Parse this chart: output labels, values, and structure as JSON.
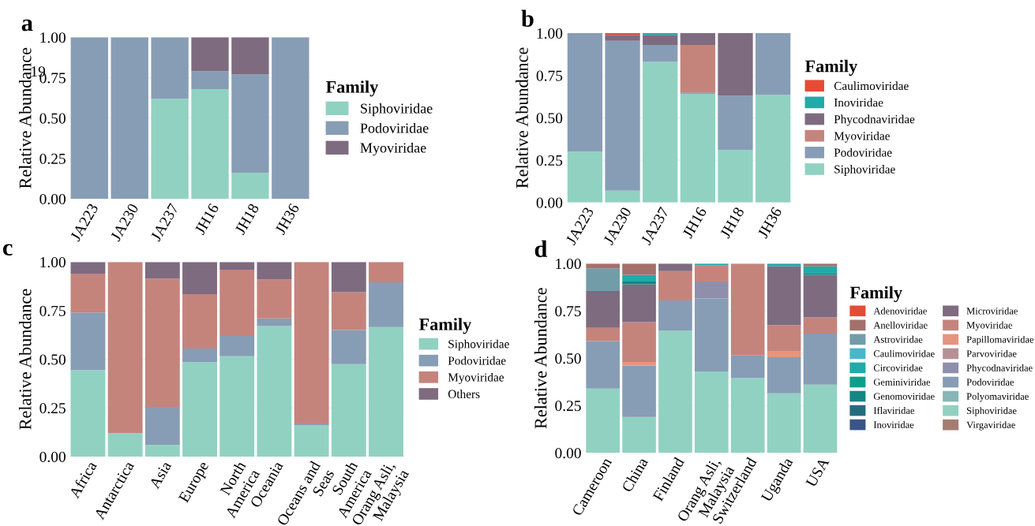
{
  "chart_data": [
    {
      "type": "bar",
      "stacked": true,
      "title": "a",
      "ylabel": "Relative Abundance",
      "legend_title": "Family",
      "legend": "right",
      "grid": "y",
      "annotations": [
        "19"
      ],
      "categories": [
        "JA223",
        "JA230",
        "JA237",
        "JH16",
        "JH18",
        "JH36"
      ],
      "ylim": [
        0,
        1
      ],
      "yticks": [
        {
          "value": 0,
          "label": "0.00"
        },
        {
          "value": 0.25,
          "label": "0.25"
        },
        {
          "value": 0.5,
          "label": "0.50"
        },
        {
          "value": 0.75,
          "label": "0.75"
        },
        {
          "value": 1,
          "label": "1.00"
        }
      ],
      "series": [
        {
          "name": "Siphoviridae",
          "color": "#91d1c2",
          "values": [
            0,
            0,
            0.62,
            0.68,
            0.16,
            0
          ]
        },
        {
          "name": "Podoviridae",
          "color": "#879db5",
          "values": [
            1,
            1,
            0.38,
            0.11,
            0.61,
            1
          ]
        },
        {
          "name": "Myoviridae",
          "color": "#7e6b80",
          "values": [
            0,
            0,
            0,
            0.21,
            0.23,
            0
          ]
        }
      ]
    },
    {
      "type": "bar",
      "stacked": true,
      "title": "b",
      "ylabel": "Relative Abundance",
      "legend_title": "Family",
      "legend": "right",
      "grid": "y",
      "categories": [
        "JA223",
        "JA230",
        "JA237",
        "JH16",
        "JH18",
        "JH36"
      ],
      "ylim": [
        0,
        1
      ],
      "yticks": [
        {
          "value": 0,
          "label": "0.00"
        },
        {
          "value": 0.25,
          "label": "0.25"
        },
        {
          "value": 0.5,
          "label": "0.50"
        },
        {
          "value": 0.75,
          "label": "0.75"
        },
        {
          "value": 1,
          "label": "1.00"
        }
      ],
      "series": [
        {
          "name": "Siphoviridae",
          "color": "#91d1c2",
          "values": [
            0.3,
            0.07,
            0.83,
            0.64,
            0.31,
            0.635
          ]
        },
        {
          "name": "Podoviridae",
          "color": "#879db5",
          "values": [
            0.7,
            0.885,
            0.1,
            0.01,
            0.32,
            0.365
          ]
        },
        {
          "name": "Myoviridae",
          "color": "#c4847c",
          "values": [
            0,
            0,
            0,
            0.28,
            0,
            0
          ]
        },
        {
          "name": "Phycodnaviridae",
          "color": "#7e6b80",
          "values": [
            0,
            0.035,
            0.06,
            0.07,
            0.37,
            0
          ]
        },
        {
          "name": "Inoviridae",
          "color": "#21aaa8",
          "values": [
            0,
            0,
            0.01,
            0,
            0,
            0
          ]
        },
        {
          "name": "Caulimoviridae",
          "color": "#e64b35",
          "values": [
            0,
            0.01,
            0,
            0,
            0,
            0
          ]
        }
      ]
    },
    {
      "type": "bar",
      "stacked": true,
      "title": "c",
      "ylabel": "Relative Abundance",
      "legend_title": "Family",
      "legend": "right",
      "grid": "y",
      "categories": [
        "Africa",
        "Antarctica",
        "Asia",
        "Europe",
        "North\nAmerica",
        "Oceania",
        "Oceans and\nSeas",
        "South\nAmerica",
        "Orang Asli,\nMalaysia"
      ],
      "ylim": [
        0,
        1
      ],
      "yticks": [
        {
          "value": 0,
          "label": "0.00"
        },
        {
          "value": 0.25,
          "label": "0.25"
        },
        {
          "value": 0.5,
          "label": "0.50"
        },
        {
          "value": 0.75,
          "label": "0.75"
        },
        {
          "value": 1,
          "label": "1.00"
        }
      ],
      "series": [
        {
          "name": "Siphoviridae",
          "color": "#91d1c2",
          "values": [
            0.445,
            0.12,
            0.06,
            0.485,
            0.515,
            0.67,
            0.16,
            0.475,
            0.665
          ]
        },
        {
          "name": "Podoviridae",
          "color": "#879db5",
          "values": [
            0.295,
            0,
            0.195,
            0.07,
            0.105,
            0.04,
            0.01,
            0.175,
            0.23
          ]
        },
        {
          "name": "Myoviridae",
          "color": "#c4847c",
          "values": [
            0.2,
            0.88,
            0.66,
            0.28,
            0.34,
            0.2,
            0.83,
            0.195,
            0.105
          ]
        },
        {
          "name": "Others",
          "color": "#7e6b80",
          "values": [
            0.06,
            0,
            0.085,
            0.165,
            0.04,
            0.09,
            0,
            0.155,
            0
          ]
        }
      ]
    },
    {
      "type": "bar",
      "stacked": true,
      "title": "d",
      "ylabel": "Relative Abundance",
      "legend_title": "Family",
      "legend": "right",
      "grid": "y",
      "categories": [
        "Cameroon",
        "China",
        "Finland",
        "Orang Asli,\nMalaysia",
        "Switzerland",
        "Uganda",
        "USA"
      ],
      "ylim": [
        0,
        1
      ],
      "yticks": [
        {
          "value": 0,
          "label": "0.00"
        },
        {
          "value": 0.25,
          "label": "0.25"
        },
        {
          "value": 0.5,
          "label": "0.50"
        },
        {
          "value": 0.75,
          "label": "0.75"
        },
        {
          "value": 1,
          "label": "1.00"
        }
      ],
      "series": [
        {
          "name": "Virgaviridae",
          "color": "#a67c72",
          "values": [
            0,
            0,
            0,
            0,
            0,
            0,
            0
          ]
        },
        {
          "name": "Siphoviridae",
          "color": "#91d1c2",
          "values": [
            0.34,
            0.19,
            0.645,
            0.43,
            0.395,
            0.315,
            0.36
          ]
        },
        {
          "name": "Polyomaviridae",
          "color": "#88b5b5",
          "values": [
            0,
            0,
            0,
            0,
            0,
            0,
            0
          ]
        },
        {
          "name": "Podoviridae",
          "color": "#879db5",
          "values": [
            0.25,
            0.27,
            0.16,
            0.385,
            0.12,
            0.19,
            0.27
          ]
        },
        {
          "name": "Phycodnaviridae",
          "color": "#8f8fab",
          "values": [
            0,
            0,
            0,
            0.09,
            0,
            0,
            0
          ]
        },
        {
          "name": "Parvoviridae",
          "color": "#b98f96",
          "values": [
            0,
            0,
            0,
            0,
            0,
            0,
            0
          ]
        },
        {
          "name": "Papillomaviridae",
          "color": "#e5957f",
          "values": [
            0,
            0.02,
            0,
            0,
            0,
            0.03,
            0
          ]
        },
        {
          "name": "Myoviridae",
          "color": "#c4847c",
          "values": [
            0.07,
            0.21,
            0.155,
            0.085,
            0.485,
            0.14,
            0.085
          ]
        },
        {
          "name": "Microviridae",
          "color": "#7e6b80",
          "values": [
            0.195,
            0.2,
            0.04,
            0,
            0,
            0.31,
            0.225
          ]
        },
        {
          "name": "Inoviridae",
          "color": "#3b5488",
          "values": [
            0,
            0,
            0,
            0,
            0,
            0,
            0
          ]
        },
        {
          "name": "Iflaviridae",
          "color": "#236c80",
          "values": [
            0,
            0,
            0,
            0,
            0,
            0,
            0
          ]
        },
        {
          "name": "Genomoviridae",
          "color": "#128784",
          "values": [
            0,
            0.015,
            0,
            0,
            0,
            0,
            0.01
          ]
        },
        {
          "name": "Geminiviridae",
          "color": "#0e9f8a",
          "values": [
            0,
            0,
            0,
            0,
            0,
            0,
            0
          ]
        },
        {
          "name": "Circoviridae",
          "color": "#21aaa8",
          "values": [
            0,
            0.035,
            0,
            0.01,
            0,
            0.015,
            0.035
          ]
        },
        {
          "name": "Caulimoviridae",
          "color": "#45b8cc",
          "values": [
            0,
            0,
            0,
            0,
            0,
            0,
            0
          ]
        },
        {
          "name": "Astroviridae",
          "color": "#739ca9",
          "values": [
            0.12,
            0,
            0,
            0,
            0,
            0,
            0
          ]
        },
        {
          "name": "Anelloviridae",
          "color": "#a5706c",
          "values": [
            0.025,
            0.06,
            0,
            0,
            0,
            0,
            0.015
          ]
        },
        {
          "name": "Adenoviridae",
          "color": "#e64b35",
          "values": [
            0,
            0,
            0,
            0,
            0,
            0,
            0
          ]
        }
      ]
    }
  ]
}
